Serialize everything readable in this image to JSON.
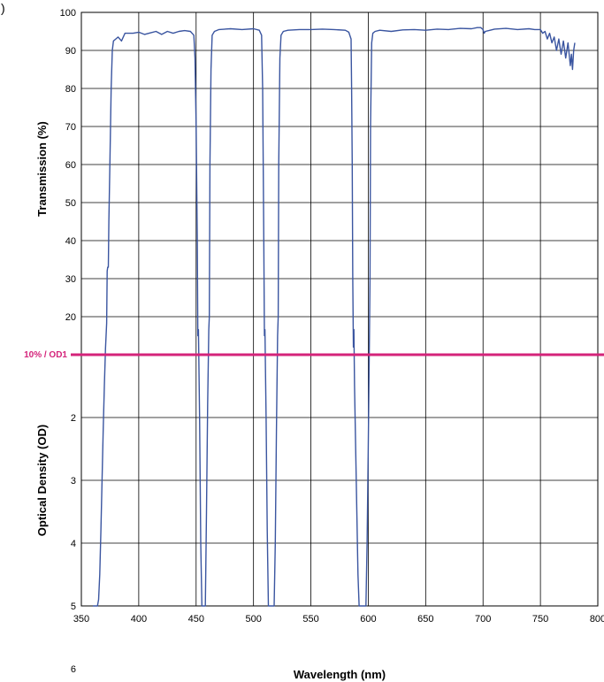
{
  "panel_label": ")",
  "chart_data": {
    "type": "line",
    "title": "",
    "xlabel": "Wavelength (nm)",
    "ylabel_top": "Transmission (%)",
    "ylabel_bottom": "Optical Density (OD)",
    "xlim": [
      350,
      800
    ],
    "x_ticks": [
      "350",
      "400",
      "450",
      "500",
      "550",
      "600",
      "650",
      "700",
      "750",
      "800"
    ],
    "y_top_ticks": [
      "100",
      "90",
      "80",
      "70",
      "60",
      "50",
      "40",
      "30",
      "20"
    ],
    "y_bottom_ticks": [
      "2",
      "3",
      "4",
      "5",
      "6"
    ],
    "grid": true,
    "reference_line": {
      "label": "10% / OD1",
      "color": "#d4237a"
    },
    "series_color": "#3a55a0",
    "series": [
      {
        "points": [
          [
            360,
            5.95
          ],
          [
            360.5,
            5.4
          ],
          [
            361,
            5.95
          ],
          [
            362,
            5.9
          ],
          [
            362.5,
            5.5
          ],
          [
            363,
            5.3
          ],
          [
            363.5,
            5.1
          ],
          [
            364,
            5.2
          ],
          [
            365,
            4.9
          ],
          [
            366,
            4.5
          ],
          [
            367,
            3.8
          ],
          [
            368,
            3.0
          ],
          [
            369,
            2.2
          ],
          [
            370,
            1.5
          ],
          [
            371,
            0.9
          ],
          [
            372,
            0.5
          ],
          [
            372.5,
            32
          ],
          [
            373,
            33
          ],
          [
            373.5,
            33
          ],
          [
            374,
            45
          ],
          [
            375,
            62
          ],
          [
            376,
            80
          ],
          [
            377,
            90
          ],
          [
            378,
            92.5
          ],
          [
            380,
            93
          ],
          [
            382,
            93.5
          ],
          [
            385,
            92.5
          ],
          [
            388,
            94.5
          ],
          [
            395,
            94.5
          ],
          [
            400,
            94.8
          ],
          [
            405,
            94.2
          ],
          [
            410,
            94.6
          ],
          [
            415,
            95
          ],
          [
            420,
            94.2
          ],
          [
            425,
            95
          ],
          [
            430,
            94.5
          ],
          [
            435,
            95
          ],
          [
            440,
            95.2
          ],
          [
            445,
            95
          ],
          [
            448,
            94
          ],
          [
            449,
            88
          ],
          [
            450,
            70
          ],
          [
            451,
            40
          ],
          [
            451.5,
            15
          ],
          [
            452,
            0.6
          ],
          [
            453,
            2.0
          ],
          [
            454,
            4.0
          ],
          [
            455,
            5.5
          ],
          [
            456,
            6
          ],
          [
            457,
            6
          ],
          [
            458,
            5.5
          ],
          [
            459,
            3.5
          ],
          [
            460,
            1.8
          ],
          [
            461,
            0.6
          ],
          [
            461.5,
            20
          ],
          [
            462,
            60
          ],
          [
            463,
            85
          ],
          [
            464,
            94
          ],
          [
            466,
            95
          ],
          [
            470,
            95.5
          ],
          [
            480,
            95.7
          ],
          [
            490,
            95.5
          ],
          [
            500,
            95.7
          ],
          [
            505,
            95.3
          ],
          [
            507,
            94
          ],
          [
            508,
            80
          ],
          [
            509,
            40
          ],
          [
            509.5,
            15
          ],
          [
            510,
            0.6
          ],
          [
            511,
            2.0
          ],
          [
            512,
            3.8
          ],
          [
            513,
            5.0
          ],
          [
            514,
            5.8
          ],
          [
            515,
            5.95
          ],
          [
            516,
            5.6
          ],
          [
            517,
            5.9
          ],
          [
            518,
            5.3
          ],
          [
            519,
            4.0
          ],
          [
            520,
            2.2
          ],
          [
            521,
            0.7
          ],
          [
            521.5,
            20
          ],
          [
            522,
            60
          ],
          [
            523,
            88
          ],
          [
            524,
            94
          ],
          [
            526,
            95
          ],
          [
            530,
            95.3
          ],
          [
            540,
            95.5
          ],
          [
            550,
            95.5
          ],
          [
            560,
            95.6
          ],
          [
            570,
            95.5
          ],
          [
            580,
            95.3
          ],
          [
            583,
            94.8
          ],
          [
            585,
            93
          ],
          [
            585.5,
            80
          ],
          [
            586,
            60
          ],
          [
            586.5,
            30
          ],
          [
            587,
            12
          ],
          [
            587.5,
            0.6
          ],
          [
            588,
            1.5
          ],
          [
            589,
            2.5
          ],
          [
            590,
            3.5
          ],
          [
            591,
            4.5
          ],
          [
            592,
            5.2
          ],
          [
            593,
            5.6
          ],
          [
            594,
            5.9
          ],
          [
            595,
            5.7
          ],
          [
            596,
            5.95
          ],
          [
            597,
            5.6
          ],
          [
            598,
            5.2
          ],
          [
            599,
            4.0
          ],
          [
            600,
            2.5
          ],
          [
            601,
            0.8
          ],
          [
            601.5,
            30
          ],
          [
            602,
            70
          ],
          [
            603,
            92
          ],
          [
            604,
            94.5
          ],
          [
            606,
            95
          ],
          [
            610,
            95.3
          ],
          [
            620,
            95
          ],
          [
            630,
            95.4
          ],
          [
            640,
            95.5
          ],
          [
            650,
            95.3
          ],
          [
            660,
            95.6
          ],
          [
            670,
            95.5
          ],
          [
            680,
            95.8
          ],
          [
            690,
            95.7
          ],
          [
            695,
            96
          ],
          [
            698,
            96
          ],
          [
            700,
            95.5
          ],
          [
            701,
            94.5
          ],
          [
            702,
            95
          ],
          [
            705,
            95.2
          ],
          [
            710,
            95.6
          ],
          [
            720,
            95.8
          ],
          [
            730,
            95.5
          ],
          [
            740,
            95.7
          ],
          [
            745,
            95.5
          ],
          [
            750,
            95.5
          ],
          [
            752,
            94.5
          ],
          [
            754,
            95
          ],
          [
            756,
            93
          ],
          [
            758,
            94.5
          ],
          [
            760,
            92
          ],
          [
            762,
            93.5
          ],
          [
            764,
            90
          ],
          [
            766,
            93
          ],
          [
            768,
            89
          ],
          [
            770,
            92.5
          ],
          [
            772,
            88
          ],
          [
            774,
            92
          ],
          [
            776,
            86
          ],
          [
            777,
            89
          ],
          [
            778,
            85
          ],
          [
            779,
            90
          ],
          [
            780,
            92
          ]
        ]
      }
    ]
  }
}
